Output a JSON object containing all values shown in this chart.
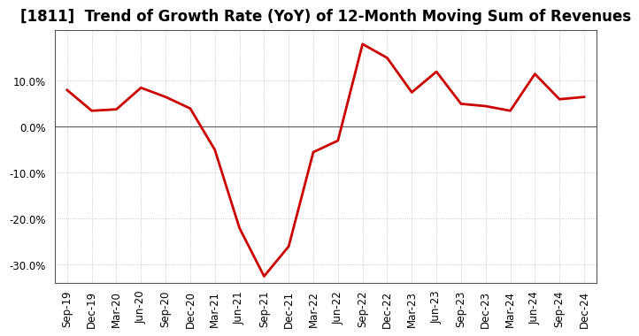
{
  "title": "[1811]  Trend of Growth Rate (YoY) of 12-Month Moving Sum of Revenues",
  "x_labels": [
    "Sep-19",
    "Dec-19",
    "Mar-20",
    "Jun-20",
    "Sep-20",
    "Dec-20",
    "Mar-21",
    "Jun-21",
    "Sep-21",
    "Dec-21",
    "Mar-22",
    "Jun-22",
    "Sep-22",
    "Dec-22",
    "Mar-23",
    "Jun-23",
    "Sep-23",
    "Dec-23",
    "Mar-24",
    "Jun-24",
    "Sep-24",
    "Dec-24"
  ],
  "y_values": [
    8.0,
    3.5,
    3.8,
    8.5,
    6.5,
    4.0,
    -5.0,
    -22.0,
    -32.5,
    -26.0,
    -5.5,
    -3.0,
    18.0,
    15.0,
    7.5,
    12.0,
    5.0,
    4.5,
    3.5,
    11.5,
    6.0,
    6.5
  ],
  "line_color": "#cc0000",
  "line_width": 2.0,
  "ylim": [
    -34,
    21
  ],
  "yticks": [
    -30.0,
    -20.0,
    -10.0,
    0.0,
    10.0
  ],
  "dot_grid_color": "#aaaaaa",
  "zero_line_color": "#555555",
  "border_color": "#555555",
  "background_color": "#ffffff",
  "title_fontsize": 12,
  "axis_fontsize": 8.5
}
